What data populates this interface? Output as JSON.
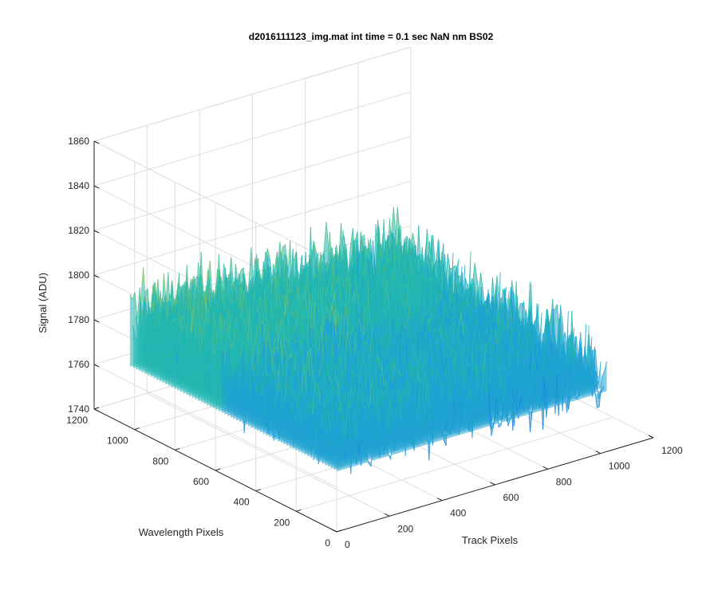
{
  "chart_data": {
    "type": "surface",
    "title": "d2016111123_img.mat int time = 0.1 sec  NaN nm BS02",
    "xlabel": "Track Pixels",
    "ylabel": "Wavelength Pixels",
    "zlabel": "Signal (ADU)",
    "xlim": [
      0,
      1200
    ],
    "ylim": [
      0,
      1200
    ],
    "zlim": [
      1740,
      1860
    ],
    "xticks": [
      "0",
      "200",
      "400",
      "600",
      "800",
      "1000",
      "1200"
    ],
    "yticks": [
      "0",
      "200",
      "400",
      "600",
      "800",
      "1000",
      "1200"
    ],
    "zticks": [
      "1740",
      "1760",
      "1780",
      "1800",
      "1820",
      "1840",
      "1860"
    ],
    "grid": true,
    "colormap": "parula",
    "surface": {
      "x_range": [
        1,
        1024
      ],
      "y_range": [
        1,
        1024
      ],
      "z_mean": 1783,
      "z_min": 1745,
      "z_max": 1835,
      "note_trend": "signal higher along the back-left region (~1790-1800) and lower toward the front-right (~1770-1780)"
    },
    "colors": {
      "low": "#1f77e0",
      "mid": "#22b6b0",
      "high": "#cfd23a"
    }
  }
}
